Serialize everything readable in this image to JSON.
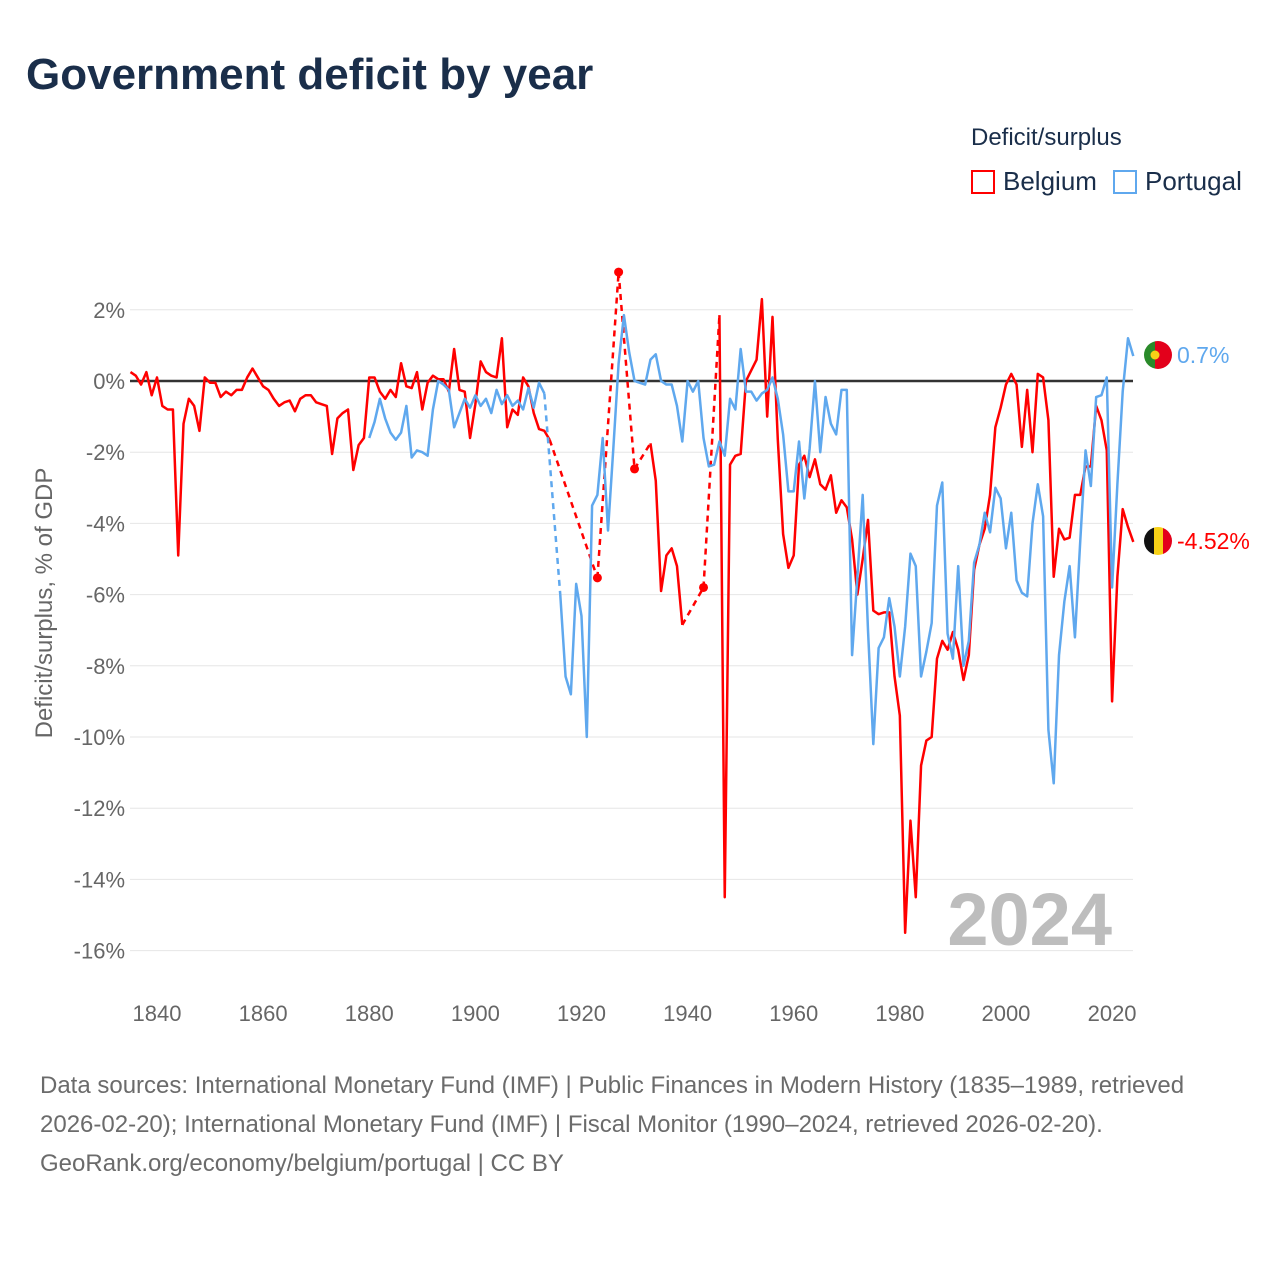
{
  "title": "Government deficit by year",
  "legend": {
    "title": "Deficit/surplus",
    "items": [
      {
        "label": "Belgium",
        "color": "#ff0000"
      },
      {
        "label": "Portugal",
        "color": "#5fa8ee"
      }
    ]
  },
  "year_label": "2024",
  "end_labels": {
    "belgium": "-4.52%",
    "portugal": "0.7%"
  },
  "footer": {
    "sources": "Data sources: International Monetary Fund (IMF) | Public Finances in Modern History (1835–1989, retrieved 2026-02-20); International Monetary Fund (IMF) | Fiscal Monitor (1990–2024, retrieved 2026-02-20).",
    "credit": "GeoRank.org/economy/belgium/portugal | CC BY"
  },
  "chart_data": {
    "type": "line",
    "title": "Government deficit by year",
    "xlabel": "",
    "ylabel": "Deficit/surplus, % of GDP",
    "xlim": [
      1835,
      2024
    ],
    "ylim": [
      -16.5,
      3
    ],
    "x_ticks": [
      "1840",
      "1860",
      "1880",
      "1900",
      "1920",
      "1940",
      "1960",
      "1980",
      "2000",
      "2020"
    ],
    "y_ticks": [
      "2%",
      "0%",
      "-2%",
      "-4%",
      "-6%",
      "-8%",
      "-10%",
      "-12%",
      "-14%",
      "-16%"
    ],
    "grid": true,
    "legend_position": "top-right",
    "series": [
      {
        "name": "Belgium",
        "color": "#ff0000",
        "start_year": 1835,
        "values": [
          0.25,
          0.15,
          -0.1,
          0.25,
          -0.4,
          0.1,
          -0.7,
          -0.8,
          -0.8,
          -4.9,
          -1.2,
          -0.5,
          -0.7,
          -1.4,
          0.1,
          -0.05,
          -0.05,
          -0.45,
          -0.3,
          -0.4,
          -0.25,
          -0.25,
          0.1,
          0.35,
          0.1,
          -0.15,
          -0.25,
          -0.5,
          -0.7,
          -0.6,
          -0.55,
          -0.85,
          -0.5,
          -0.4,
          -0.4,
          -0.6,
          -0.65,
          -0.7,
          -2.05,
          -1.05,
          -0.9,
          -0.8,
          -2.5,
          -1.8,
          -1.6,
          0.1,
          0.1,
          -0.3,
          -0.5,
          -0.25,
          -0.45,
          0.5,
          -0.15,
          -0.2,
          0.25,
          -0.8,
          -0.05,
          0.15,
          0.05,
          0.05,
          -0.3,
          0.9,
          -0.25,
          -0.3,
          -1.6,
          -0.65,
          0.55,
          0.25,
          0.15,
          0.1,
          1.2,
          -1.3,
          -0.8,
          -0.95,
          0.1,
          -0.15,
          -0.9,
          -1.35,
          -1.4,
          -1.65,
          null,
          null,
          null,
          null,
          null,
          null,
          null,
          null,
          -5.53,
          null,
          null,
          null,
          3.06,
          null,
          null,
          -2.47,
          null,
          null,
          -1.75,
          -2.8,
          -5.9,
          -4.9,
          -4.7,
          -5.2,
          -6.85,
          null,
          null,
          null,
          -5.8,
          null,
          null,
          1.85,
          -14.5,
          -2.35,
          -2.1,
          -2.05,
          0,
          0.3,
          0.6,
          2.3,
          -1,
          1.8,
          -1.65,
          -4.3,
          -5.25,
          -4.9,
          -2.35,
          -2.1,
          -2.7,
          -2.2,
          -2.9,
          -3.05,
          -2.65,
          -3.7,
          -3.35,
          -3.55,
          -4.45,
          -6.0,
          -5.0,
          -3.9,
          -6.45,
          -6.55,
          -6.5,
          -6.5,
          -8.3,
          -9.4,
          -15.5,
          -12.35,
          -14.5,
          -10.8,
          -10.1,
          -10.0,
          -7.8,
          -7.3,
          -7.55,
          -7.05,
          -7.55,
          -8.4,
          -7.7,
          -5.3,
          -4.6,
          -4.15,
          -3.2,
          -1.3,
          -0.75,
          -0.1,
          0.2,
          -0.1,
          -1.85,
          -0.25,
          -2.0,
          0.2,
          0.1,
          -1.1,
          -5.5,
          -4.15,
          -4.45,
          -4.4,
          -3.2,
          -3.2,
          -2.4,
          -2.4,
          -0.7,
          -1.1,
          -1.95,
          -9.0,
          -5.5,
          -3.6,
          -4.1,
          -4.52
        ]
      },
      {
        "name": "Portugal",
        "color": "#5fa8ee",
        "start_year": 1880,
        "values": [
          -1.6,
          -1.15,
          -0.5,
          -1.05,
          -1.45,
          -1.65,
          -1.45,
          -0.7,
          -2.15,
          -1.95,
          -2.0,
          -2.1,
          -0.8,
          0,
          -0.1,
          -0.25,
          -1.3,
          -0.9,
          -0.5,
          -0.75,
          -0.4,
          -0.7,
          -0.5,
          -0.9,
          -0.25,
          -0.65,
          -0.4,
          -0.7,
          -0.55,
          -0.8,
          -0.2,
          -0.75,
          -0.05,
          -0.35,
          null,
          null,
          -6.0,
          -8.3,
          -8.8,
          -5.7,
          -6.6,
          -10.0,
          -3.5,
          -3.2,
          -1.6,
          -4.2,
          -1.9,
          0.5,
          1.85,
          0.8,
          0.0,
          -0.05,
          -0.1,
          0.6,
          0.75,
          0.0,
          -0.1,
          -0.1,
          -0.7,
          -1.7,
          0.0,
          -0.3,
          0.0,
          -1.6,
          -2.4,
          -2.35,
          -1.7,
          -2.1,
          -0.5,
          -0.8,
          0.9,
          -0.3,
          -0.3,
          -0.55,
          -0.35,
          -0.25,
          0.1,
          -0.5,
          -1.5,
          -3.1,
          -3.1,
          -1.7,
          -3.3,
          -1.9,
          0.0,
          -2.0,
          -0.45,
          -1.2,
          -1.5,
          -0.25,
          -0.25,
          -7.7,
          -5.5,
          -3.2,
          -7.0,
          -10.2,
          -7.5,
          -7.2,
          -6.1,
          -6.9,
          -8.3,
          -6.9,
          -4.85,
          -5.2,
          -8.3,
          -7.6,
          -6.8,
          -3.5,
          -2.85,
          -7.1,
          -7.8,
          -5.2,
          -8.0,
          -7.3,
          -5.1,
          -4.6,
          -3.7,
          -4.25,
          -3.0,
          -3.3,
          -4.7,
          -3.7,
          -5.6,
          -5.95,
          -6.05,
          -4.0,
          -2.9,
          -3.8,
          -9.8,
          -11.3,
          -7.7,
          -6.2,
          -5.2,
          -7.2,
          -4.5,
          -1.95,
          -2.95,
          -0.45,
          -0.4,
          0.1,
          -5.8,
          -2.9,
          -0.3,
          1.2,
          0.7
        ]
      }
    ]
  }
}
